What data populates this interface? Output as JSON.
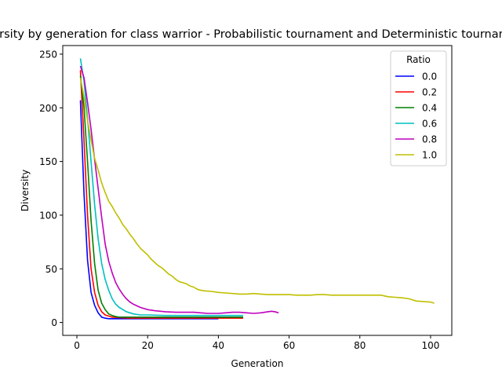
{
  "chart_data": {
    "type": "line",
    "title": "Diversity by generation for class warrior - Probabilistic tournament and Deterministic tournament",
    "xlabel": "Generation",
    "ylabel": "Diversity",
    "xlim": [
      -4,
      106
    ],
    "ylim": [
      -12,
      258
    ],
    "xticks": [
      0,
      20,
      40,
      60,
      80,
      100
    ],
    "yticks": [
      0,
      50,
      100,
      150,
      200,
      250
    ],
    "grid": false,
    "legend": {
      "title": "Ratio",
      "placement": "top-right"
    },
    "series": [
      {
        "name": "0.0",
        "color": "#0000ff",
        "x": [
          1,
          2,
          3,
          4,
          5,
          6,
          7,
          8,
          9,
          10,
          12,
          15,
          20,
          25,
          30,
          35,
          40
        ],
        "y": [
          207,
          120,
          58,
          28,
          16,
          9,
          5,
          4,
          3.5,
          3.5,
          3.5,
          3.5,
          3.5,
          3.5,
          3.5,
          3.5,
          3.5
        ]
      },
      {
        "name": "0.2",
        "color": "#ff0000",
        "x": [
          1,
          2,
          3,
          4,
          5,
          6,
          7,
          8,
          9,
          10,
          12,
          15,
          20,
          25,
          30,
          35,
          40,
          43,
          47
        ],
        "y": [
          235,
          170,
          100,
          50,
          28,
          16,
          10,
          7,
          6,
          5,
          4.5,
          4,
          4,
          4,
          4,
          4,
          4,
          4,
          4
        ]
      },
      {
        "name": "0.4",
        "color": "#008000",
        "x": [
          1,
          2,
          3,
          4,
          5,
          6,
          7,
          8,
          9,
          10,
          11,
          12,
          15,
          20,
          25,
          30,
          35,
          40,
          45,
          47
        ],
        "y": [
          230,
          200,
          150,
          95,
          55,
          30,
          18,
          12,
          8,
          6.5,
          5.5,
          5,
          5,
          5,
          5,
          5,
          5,
          5,
          5,
          5
        ]
      },
      {
        "name": "0.6",
        "color": "#00bfbf",
        "x": [
          1,
          2,
          3,
          4,
          5,
          6,
          7,
          8,
          9,
          10,
          11,
          12,
          13,
          14,
          15,
          16,
          18,
          20,
          25,
          30,
          35,
          40,
          45,
          47
        ],
        "y": [
          246,
          225,
          190,
          150,
          110,
          78,
          55,
          40,
          30,
          22,
          17,
          14,
          12,
          10,
          9,
          8,
          7,
          7,
          6.5,
          6.5,
          6.5,
          6.5,
          6.5,
          6.5
        ]
      },
      {
        "name": "0.8",
        "color": "#bf00bf",
        "x": [
          1,
          2,
          3,
          4,
          5,
          6,
          7,
          8,
          9,
          10,
          11,
          12,
          13,
          14,
          15,
          16,
          18,
          20,
          22,
          25,
          28,
          30,
          33,
          35,
          37,
          40,
          42,
          44,
          46,
          48,
          50,
          52,
          54,
          55,
          56,
          57
        ],
        "y": [
          239,
          228,
          205,
          180,
          152,
          125,
          98,
          73,
          57,
          46,
          37,
          31,
          26,
          22,
          19,
          17,
          14,
          12,
          11,
          10,
          9.5,
          9.5,
          9.5,
          9,
          8.5,
          8.5,
          9,
          9.5,
          9.5,
          9,
          8.5,
          9,
          10,
          10.5,
          10,
          9
        ]
      },
      {
        "name": "1.0",
        "color": "#bfbf00",
        "x": [
          1,
          2,
          3,
          4,
          5,
          6,
          7,
          8,
          9,
          10,
          11,
          12,
          13,
          14,
          15,
          16,
          17,
          18,
          19,
          20,
          21,
          22,
          23,
          24,
          25,
          26,
          27,
          28,
          29,
          30,
          31,
          32,
          33,
          34,
          35,
          36,
          38,
          40,
          42,
          44,
          46,
          48,
          50,
          52,
          54,
          56,
          58,
          60,
          62,
          64,
          66,
          68,
          70,
          72,
          74,
          76,
          78,
          80,
          82,
          84,
          86,
          88,
          90,
          92,
          94,
          96,
          98,
          100,
          101
        ],
        "y": [
          228,
          210,
          188,
          170,
          153,
          142,
          130,
          121,
          113,
          108,
          102,
          97,
          91,
          87,
          82,
          78,
          73,
          69,
          66,
          63,
          59,
          56,
          53,
          51,
          48,
          45,
          43,
          40,
          38,
          37,
          36,
          34,
          33,
          31,
          30,
          29.5,
          29,
          28,
          27.5,
          27,
          26.5,
          26.5,
          27,
          26.5,
          26,
          26,
          26,
          26,
          25.5,
          25.5,
          25.5,
          26,
          26,
          25.5,
          25.5,
          25.5,
          25.5,
          25.5,
          25.5,
          25.5,
          25.5,
          24,
          23.5,
          23,
          22,
          20,
          19.5,
          19,
          18
        ]
      }
    ]
  }
}
